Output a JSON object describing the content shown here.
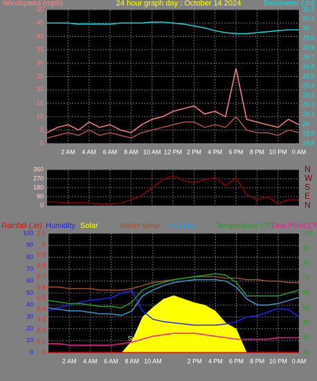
{
  "chart_data": [
    {
      "type": "line",
      "title": "24 hour graph day : October 14 2024",
      "y_label": "Windspeed (mph)",
      "y2_label": "Barometer (.in)",
      "x": [
        0,
        1,
        2,
        3,
        4,
        5,
        6,
        7,
        8,
        9,
        10,
        11,
        12,
        13,
        14,
        15,
        16,
        17,
        18,
        19,
        20,
        21,
        22,
        23,
        24
      ],
      "xlim": [
        0,
        24
      ],
      "xticks": [
        {
          "value": 2,
          "label": "2 AM"
        },
        {
          "value": 4,
          "label": "4 AM"
        },
        {
          "value": 6,
          "label": "6 AM"
        },
        {
          "value": 8,
          "label": "8 AM"
        },
        {
          "value": 10,
          "label": "10 AM"
        },
        {
          "value": 12,
          "label": "12 PM"
        },
        {
          "value": 14,
          "label": "2 PM"
        },
        {
          "value": 16,
          "label": "4 PM"
        },
        {
          "value": 18,
          "label": "6 PM"
        },
        {
          "value": 20,
          "label": "8 PM"
        },
        {
          "value": 22,
          "label": "10 PM"
        },
        {
          "value": 24,
          "label": "0 AM"
        }
      ],
      "ylim": [
        0,
        50
      ],
      "yticks": [
        0,
        5,
        10,
        15,
        20,
        25,
        30,
        35,
        40,
        45,
        50
      ],
      "y2lim": [
        28.8,
        30.2
      ],
      "y2ticks": [
        28.8,
        28.9,
        29,
        29.1,
        29.2,
        29.3,
        29.4,
        29.5,
        29.6,
        29.7,
        29.8,
        29.9,
        30,
        30.1,
        30.2
      ],
      "grid": true,
      "series": [
        {
          "color": "#ff8080",
          "values": [
            4,
            6,
            7,
            5,
            8,
            6,
            7,
            5,
            4,
            7,
            9,
            10,
            12,
            13,
            14,
            11,
            12,
            10,
            28,
            9,
            8,
            7,
            6,
            9,
            7
          ]
        },
        {
          "color": "#b05050",
          "values": [
            2,
            3,
            4,
            3,
            5,
            3,
            4,
            3,
            2,
            4,
            5,
            6,
            7,
            8,
            8,
            6,
            7,
            6,
            10,
            5,
            4,
            4,
            3,
            5,
            4
          ]
        },
        {
          "color": "#00e0e0",
          "axis": "y2",
          "values": [
            30.06,
            30.06,
            30.06,
            30.05,
            30.05,
            30.05,
            30.05,
            30.06,
            30.06,
            30.06,
            30.07,
            30.07,
            30.06,
            30.05,
            30.03,
            30.01,
            29.98,
            29.96,
            29.95,
            29.95,
            29.96,
            29.97,
            29.98,
            29.99,
            29.99
          ]
        }
      ]
    },
    {
      "type": "line",
      "x": [
        0,
        1,
        2,
        3,
        4,
        5,
        6,
        7,
        8,
        9,
        10,
        11,
        12,
        13,
        14,
        15,
        16,
        17,
        18,
        19,
        20,
        21,
        22,
        23,
        24
      ],
      "xlim": [
        0,
        24
      ],
      "xticks": [
        2,
        4,
        6,
        8,
        10,
        12,
        14,
        16,
        18,
        20,
        22,
        24
      ],
      "ylim": [
        0,
        360
      ],
      "yticks": [
        0,
        90,
        180,
        270,
        360
      ],
      "y2lim": [
        0,
        360
      ],
      "y2ticks": [
        {
          "value": 0,
          "label": "N"
        },
        {
          "value": 90,
          "label": "E"
        },
        {
          "value": 180,
          "label": "S"
        },
        {
          "value": 270,
          "label": "W"
        },
        {
          "value": 360,
          "label": "N"
        }
      ],
      "grid": true,
      "series": [
        {
          "color": "#900000",
          "values": [
            40,
            35,
            30,
            30,
            25,
            20,
            20,
            25,
            60,
            100,
            180,
            260,
            300,
            250,
            230,
            260,
            280,
            200,
            280,
            110,
            60,
            90,
            20,
            60,
            60
          ]
        }
      ]
    },
    {
      "type": "line",
      "annotation": "Sun",
      "x": [
        0,
        1,
        2,
        3,
        4,
        5,
        6,
        7,
        8,
        9,
        10,
        11,
        12,
        13,
        14,
        15,
        16,
        17,
        18,
        19,
        20,
        21,
        22,
        23,
        24
      ],
      "xlim": [
        0,
        24
      ],
      "xticks": [
        {
          "value": 2,
          "label": "2 AM"
        },
        {
          "value": 4,
          "label": "4 AM"
        },
        {
          "value": 6,
          "label": "6 AM"
        },
        {
          "value": 8,
          "label": "8 AM"
        },
        {
          "value": 10,
          "label": "10 AM"
        },
        {
          "value": 14,
          "label": "2 PM"
        },
        {
          "value": 16,
          "label": "4 PM"
        },
        {
          "value": 18,
          "label": "6 PM"
        },
        {
          "value": 20,
          "label": "8 PM"
        },
        {
          "value": 22,
          "label": "10 PM"
        },
        {
          "value": 24,
          "label": "0 AM"
        }
      ],
      "ylim": [
        0,
        100
      ],
      "yticks": [
        0,
        10,
        20,
        30,
        40,
        50,
        60,
        70,
        80,
        90,
        100
      ],
      "y3lim": [
        0,
        1.1
      ],
      "y3ticks": [
        0,
        0.1,
        0.2,
        0.3,
        0.4,
        0.5,
        0.6,
        0.7,
        0.8,
        0.9,
        1,
        1.1
      ],
      "y2lim": [
        20,
        100
      ],
      "y2ticks": [
        20,
        30,
        40,
        50,
        60,
        70,
        80,
        90,
        100
      ],
      "grid": true,
      "series": [
        {
          "name": "Solar",
          "color": "#ffff00",
          "area": true,
          "values": [
            0,
            0,
            0,
            0,
            0,
            0,
            0,
            0,
            10,
            30,
            38,
            45,
            48,
            45,
            42,
            40,
            35,
            25,
            20,
            0,
            0,
            0,
            0,
            0,
            0
          ]
        },
        {
          "name": "Rainfall (.in)",
          "color": "#ff0000",
          "axis": "y3",
          "values": [
            0,
            0,
            0,
            0,
            0,
            0,
            0,
            0,
            0,
            0,
            0,
            0,
            0,
            0,
            0,
            0,
            0,
            0,
            0,
            0,
            0,
            0,
            0,
            0,
            0
          ]
        },
        {
          "name": "Humidity",
          "color": "#2020ff",
          "values": [
            35,
            38,
            40,
            42,
            44,
            45,
            46,
            50,
            52,
            35,
            28,
            26,
            25,
            24,
            23,
            23,
            23,
            24,
            26,
            30,
            31,
            34,
            37,
            36,
            30
          ]
        },
        {
          "name": "Indoor temp",
          "color": "#a0522d",
          "axis": "y2",
          "values": [
            64,
            64,
            63,
            63,
            63,
            62,
            62,
            62,
            63,
            65,
            67,
            68,
            69,
            70,
            71,
            71,
            71,
            70,
            70,
            69,
            69,
            68,
            68,
            67,
            67
          ]
        },
        {
          "name": "Humidex",
          "color": "#3399cc",
          "axis": "y2",
          "values": [
            50,
            49,
            48,
            48,
            47,
            46,
            46,
            45,
            48,
            58,
            62,
            65,
            67,
            68,
            69,
            69,
            69,
            68,
            64,
            56,
            52,
            52,
            53,
            55,
            57
          ]
        },
        {
          "name": "Temperature (°F)",
          "color": "#20a020",
          "axis": "y2",
          "values": [
            55,
            54,
            53,
            53,
            52,
            51,
            51,
            50,
            54,
            62,
            65,
            67,
            69,
            70,
            71,
            72,
            73,
            72,
            67,
            58,
            58,
            58,
            58,
            60,
            62
          ]
        },
        {
          "name": "Dew Point (°F)",
          "color": "#ff1493",
          "axis": "y2",
          "values": [
            26,
            26,
            25,
            25,
            25,
            25,
            25,
            26,
            27,
            29,
            31,
            32,
            33,
            33,
            33,
            32,
            31,
            30,
            29,
            29,
            29,
            29,
            30,
            30,
            30
          ]
        }
      ]
    }
  ]
}
